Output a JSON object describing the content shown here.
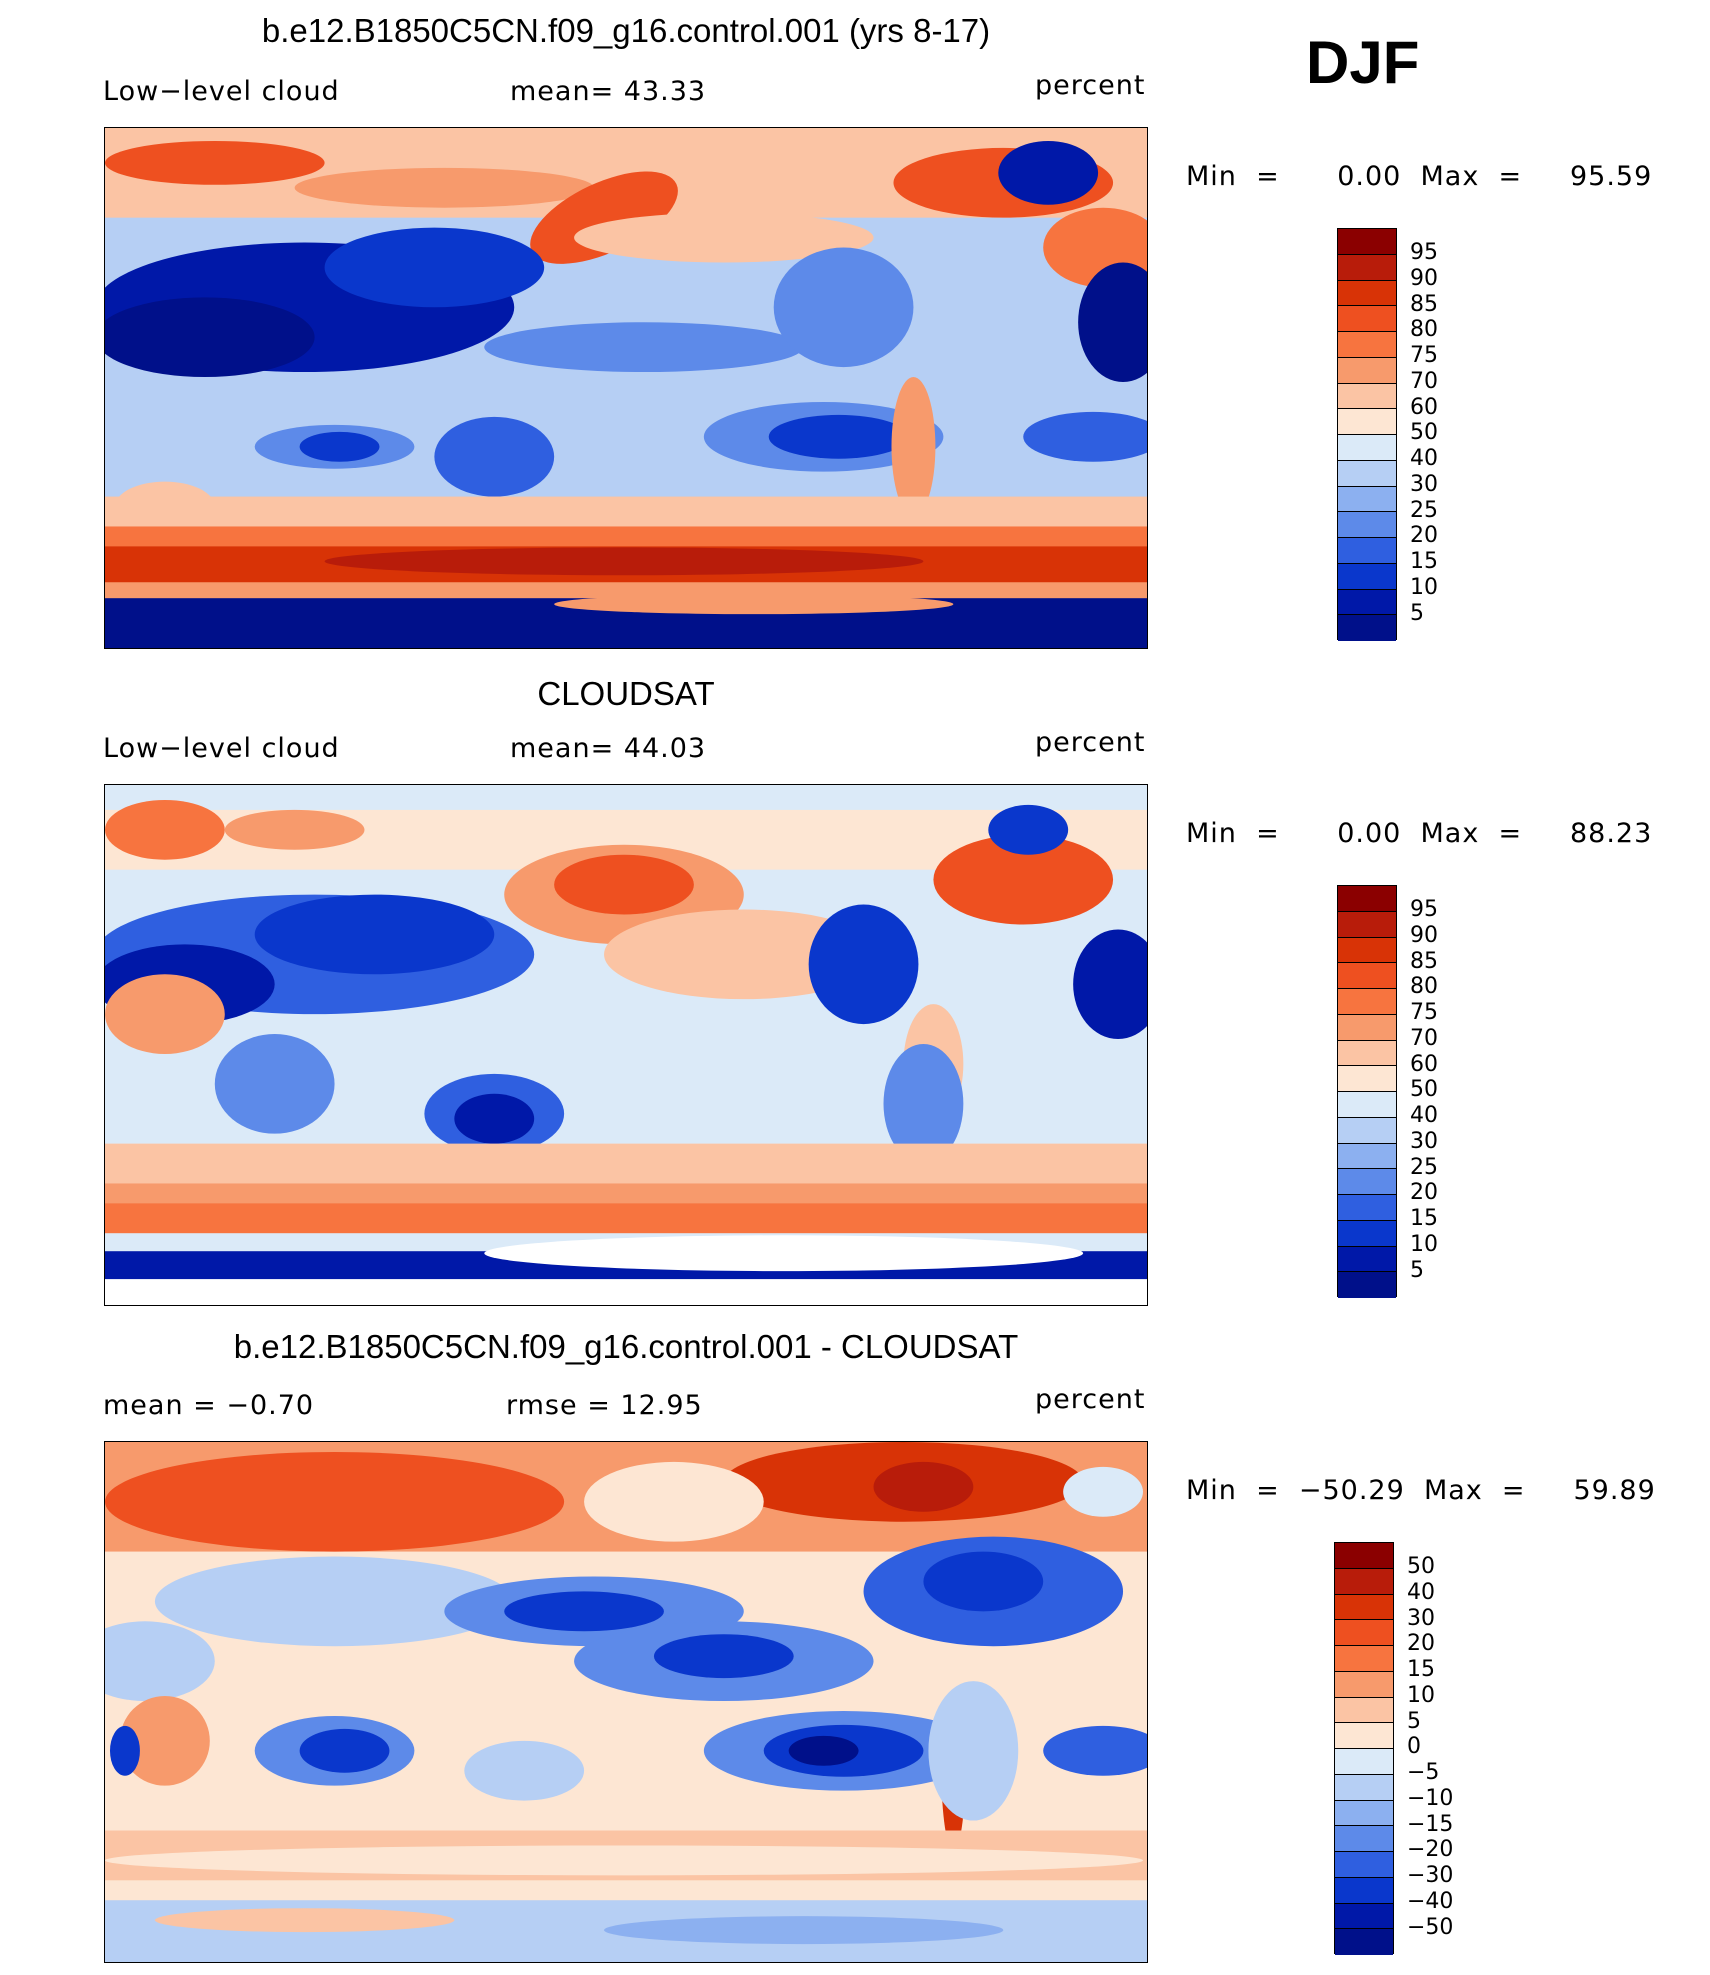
{
  "season": "DJF",
  "panels": [
    {
      "title": "b.e12.B1850C5CN.f09_g16.control.001 (yrs 8-17)",
      "left_label": "Low−level  cloud",
      "center_label": "mean=    43.33",
      "right_label": "percent",
      "minmax": "Min  =      0.00  Max  =     95.59"
    },
    {
      "title": "CLOUDSAT",
      "left_label": "Low−level  cloud",
      "center_label": "mean=    44.03",
      "right_label": "percent",
      "minmax": "Min  =      0.00  Max  =     88.23"
    },
    {
      "title": "b.e12.B1850C5CN.f09_g16.control.001 - CLOUDSAT",
      "left_label": "mean  =     −0.70",
      "center_label": "rmse  =     12.95",
      "right_label": "percent",
      "minmax": "Min  =  −50.29  Max  =     59.89"
    }
  ],
  "colorbars": {
    "cloud": {
      "labels": [
        "95",
        "90",
        "85",
        "80",
        "75",
        "70",
        "60",
        "50",
        "40",
        "30",
        "25",
        "20",
        "15",
        "10",
        "5"
      ],
      "colors": [
        "#8b0000",
        "#b81c0a",
        "#d83306",
        "#ee5020",
        "#f7743f",
        "#f79a6c",
        "#fbc4a4",
        "#fde6d3",
        "#dbeaf8",
        "#b6cff4",
        "#8cb0f0",
        "#5d8ae9",
        "#2f5fe0",
        "#0a37cc",
        "#0018a8",
        "#00108a"
      ]
    },
    "diff": {
      "labels": [
        "50",
        "40",
        "30",
        "20",
        "15",
        "10",
        "5",
        "0",
        "−5",
        "−10",
        "−15",
        "−20",
        "−30",
        "−40",
        "−50"
      ],
      "colors": [
        "#8b0000",
        "#b81c0a",
        "#d83306",
        "#ee5020",
        "#f7743f",
        "#f79a6c",
        "#fbc4a4",
        "#fde6d3",
        "#dbeaf8",
        "#b6cff4",
        "#8cb0f0",
        "#5d8ae9",
        "#2f5fe0",
        "#0a37cc",
        "#0018a8",
        "#00108a"
      ]
    }
  }
}
